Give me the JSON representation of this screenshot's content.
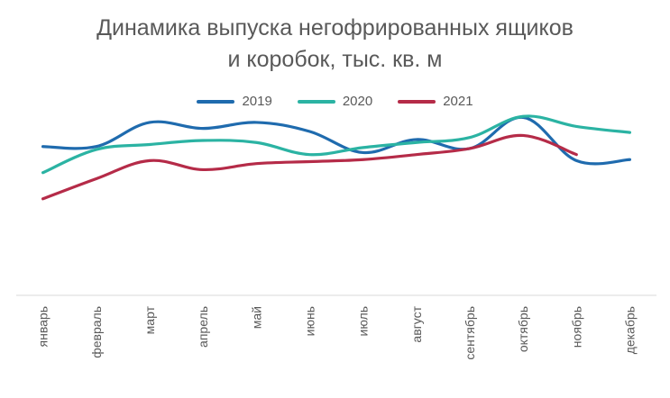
{
  "chart_data": {
    "type": "line",
    "title_lines": [
      "Динамика выпуска негофрированных ящиков",
      "и коробок, тыс. кв. м"
    ],
    "xlabel": "",
    "ylabel": "",
    "categories": [
      "январь",
      "февраль",
      "март",
      "апрель",
      "май",
      "июнь",
      "июль",
      "август",
      "сентябрь",
      "октябрь",
      "ноябрь",
      "декабрь"
    ],
    "series": [
      {
        "name": "2019",
        "color": "#1F6BAE",
        "values": [
          148,
          148,
          172,
          166,
          172,
          163,
          142,
          155,
          146,
          177,
          134,
          135
        ]
      },
      {
        "name": "2020",
        "color": "#2BB3A3",
        "values": [
          122,
          145,
          150,
          154,
          152,
          140,
          147,
          152,
          157,
          178,
          168,
          162
        ]
      },
      {
        "name": "2021",
        "color": "#B52B48",
        "values": [
          96,
          116,
          134,
          125,
          131,
          133,
          135,
          140,
          146,
          159,
          140,
          null
        ]
      }
    ],
    "ylim": [
      0,
      240
    ],
    "grid": false,
    "legend_position": "top-center"
  }
}
